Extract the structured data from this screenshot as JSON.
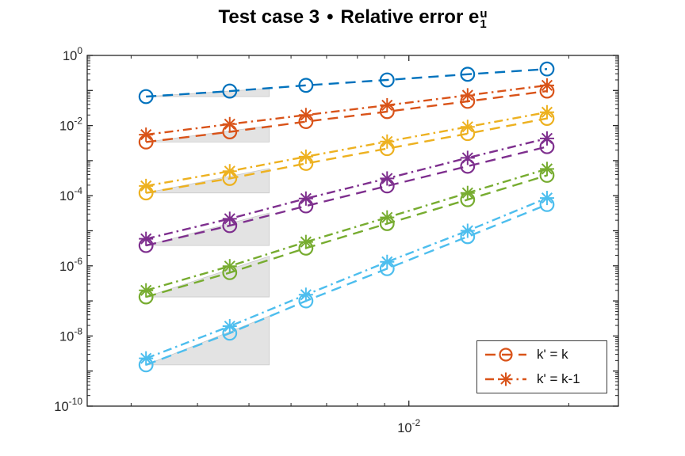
{
  "title": {
    "prefix": "Test case 3",
    "bullet": "•",
    "suffix": "Relative error e",
    "e_superscript": "u",
    "e_subscript": "1"
  },
  "legend": {
    "color": "#D95319",
    "items": [
      {
        "label": "k' = k",
        "marker": "circle",
        "linestyle": "dashed"
      },
      {
        "label": "k' = k-1",
        "marker": "asterisk",
        "linestyle": "dashdot"
      }
    ]
  },
  "axes": {
    "axis_color": "#262626",
    "triangle_fill": "#e3e3e3",
    "triangle_edge": "#c9c9c9"
  },
  "chart_data": {
    "type": "line",
    "title": "Test case 3 • Relative error e_1^u",
    "log_x": true,
    "log_y": true,
    "grid": false,
    "legend_position": "bottom-right",
    "xlim": [
      0.00248,
      0.0248
    ],
    "ylim": [
      1e-10,
      1
    ],
    "x_labeled_exponents": [
      -2
    ],
    "y_labeled_exponents": [
      0,
      -2,
      -4,
      -6,
      -8,
      -10
    ],
    "x_tick_labels": [
      "10^-2"
    ],
    "y_tick_labels": [
      "10^0",
      "10^-2",
      "10^-4",
      "10^-6",
      "10^-8",
      "10^-10"
    ],
    "x": [
      0.0032,
      0.0046,
      0.0064,
      0.0091,
      0.0129,
      0.0182
    ],
    "series": [
      {
        "name": "blue k'=k",
        "color": "#0072BD",
        "marker": "circle",
        "linestyle": "dashed",
        "values": [
          0.067,
          0.096,
          0.14,
          0.2,
          0.29,
          0.41
        ]
      },
      {
        "name": "orange k'=k",
        "color": "#D95319",
        "marker": "circle",
        "linestyle": "dashed",
        "values": [
          0.0034,
          0.0066,
          0.013,
          0.025,
          0.049,
          0.096
        ]
      },
      {
        "name": "orange k'=k-1",
        "color": "#D95319",
        "marker": "asterisk",
        "linestyle": "dashdot",
        "values": [
          0.0055,
          0.011,
          0.02,
          0.038,
          0.073,
          0.14
        ]
      },
      {
        "name": "yellow k'=k",
        "color": "#EDB120",
        "marker": "circle",
        "linestyle": "dashed",
        "values": [
          0.00012,
          0.00031,
          0.00083,
          0.0022,
          0.0059,
          0.016
        ]
      },
      {
        "name": "yellow k'=k-1",
        "color": "#EDB120",
        "marker": "asterisk",
        "linestyle": "dashdot",
        "values": [
          0.00019,
          0.0005,
          0.0013,
          0.0035,
          0.0092,
          0.024
        ]
      },
      {
        "name": "purple k'=k",
        "color": "#7E2F8E",
        "marker": "circle",
        "linestyle": "dashed",
        "values": [
          3.8e-06,
          1.4e-05,
          5.1e-05,
          0.00019,
          0.00069,
          0.0025
        ]
      },
      {
        "name": "purple k'=k-1",
        "color": "#7E2F8E",
        "marker": "asterisk",
        "linestyle": "dashdot",
        "values": [
          5.9e-06,
          2.2e-05,
          8.3e-05,
          0.00031,
          0.0012,
          0.0043
        ]
      },
      {
        "name": "green k'=k",
        "color": "#77AC30",
        "marker": "circle",
        "linestyle": "dashed",
        "values": [
          1.3e-07,
          6.4e-07,
          3.2e-06,
          1.6e-05,
          7.7e-05,
          0.00038
        ]
      },
      {
        "name": "green k'=k-1",
        "color": "#77AC30",
        "marker": "asterisk",
        "linestyle": "dashdot",
        "values": [
          2e-07,
          9.8e-07,
          4.8e-06,
          2.4e-05,
          0.00012,
          0.00058
        ]
      },
      {
        "name": "cyan k'=k",
        "color": "#4DBEEE",
        "marker": "circle",
        "linestyle": "dashed",
        "values": [
          1.5e-09,
          1.2e-08,
          1e-07,
          8.3e-07,
          6.8e-06,
          5.6e-05
        ]
      },
      {
        "name": "cyan k'=k-1",
        "color": "#4DBEEE",
        "marker": "asterisk",
        "linestyle": "dashdot",
        "values": [
          2.3e-09,
          1.9e-08,
          1.5e-07,
          1.3e-06,
          1e-05,
          8.6e-05
        ]
      }
    ],
    "slope_triangles": [
      {
        "series": "blue",
        "slope": 1,
        "x1": 0.0032,
        "x2": 0.00546,
        "base": 0.067
      },
      {
        "series": "orange",
        "slope": 2,
        "x1": 0.0032,
        "x2": 0.00546,
        "base": 0.0034
      },
      {
        "series": "yellow",
        "slope": 3,
        "x1": 0.0032,
        "x2": 0.00546,
        "base": 0.00012
      },
      {
        "series": "purple",
        "slope": 4,
        "x1": 0.0032,
        "x2": 0.00546,
        "base": 3.8e-06
      },
      {
        "series": "green",
        "slope": 5,
        "x1": 0.0032,
        "x2": 0.00546,
        "base": 1.3e-07
      },
      {
        "series": "cyan",
        "slope": 6,
        "x1": 0.0032,
        "x2": 0.00546,
        "base": 1.5e-09
      }
    ]
  }
}
